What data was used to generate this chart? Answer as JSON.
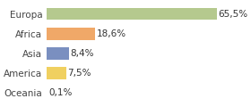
{
  "categories": [
    "Europa",
    "Africa",
    "Asia",
    "America",
    "Oceania"
  ],
  "values": [
    65.5,
    18.6,
    8.4,
    7.5,
    0.1
  ],
  "labels": [
    "65,5%",
    "18,6%",
    "8,4%",
    "7,5%",
    "0,1%"
  ],
  "colors": [
    "#b5c98e",
    "#f0a868",
    "#7a8fc0",
    "#f0d060",
    "#f5b8a0"
  ],
  "xlim": [
    0,
    70
  ],
  "background_color": "#ffffff",
  "label_fontsize": 7.5,
  "tick_fontsize": 7.5
}
